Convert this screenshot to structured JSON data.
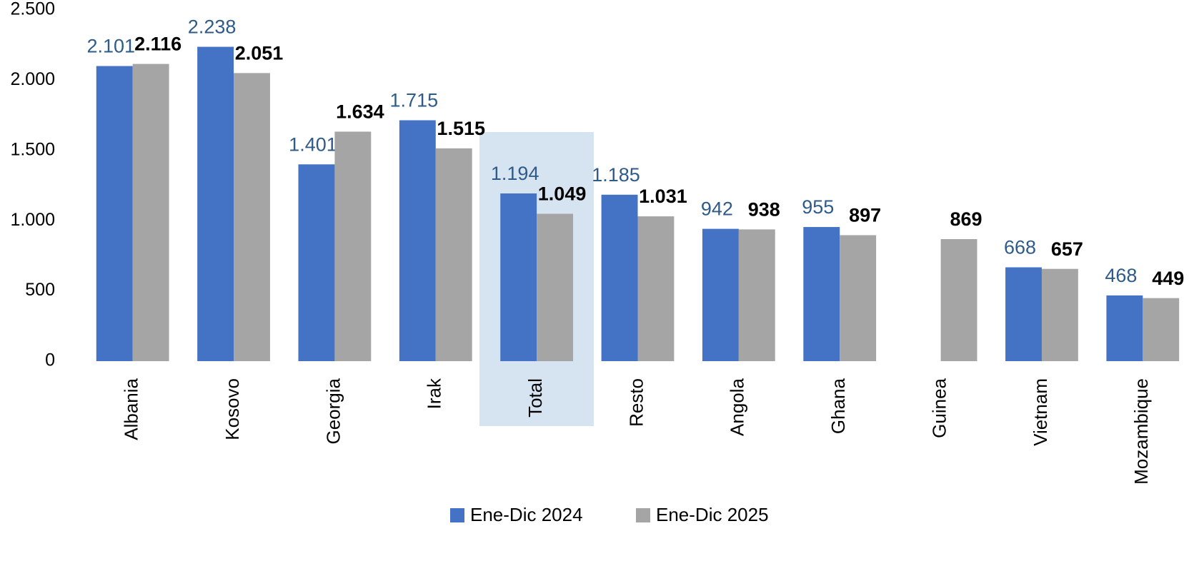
{
  "chart_data": {
    "type": "bar",
    "categories": [
      "Albania",
      "Kosovo",
      "Georgia",
      "Irak",
      "Total",
      "Resto",
      "Angola",
      "Ghana",
      "Guinea",
      "Vietnam",
      "Mozambique"
    ],
    "series": [
      {
        "name": "Ene-Dic 2024",
        "color": "#4472c4",
        "values": [
          2101,
          2238,
          1401,
          1715,
          1194,
          1185,
          942,
          955,
          null,
          668,
          468
        ],
        "value_labels": [
          "2.101",
          "2.238",
          "1.401",
          "1.715",
          "1.194",
          "1.185",
          "942",
          "955",
          null,
          "668",
          "468"
        ]
      },
      {
        "name": "Ene-Dic 2025",
        "color": "#a5a5a5",
        "values": [
          2116,
          2051,
          1634,
          1515,
          1049,
          1031,
          938,
          897,
          869,
          657,
          449
        ],
        "value_labels": [
          "2.116",
          "2.051",
          "1.634",
          "1.515",
          "1.049",
          "1.031",
          "938",
          "897",
          "869",
          "657",
          "449"
        ]
      }
    ],
    "ylim": [
      0,
      2500
    ],
    "yticks": [
      0,
      500,
      {
        "value": 1000,
        "label": "1.000"
      },
      {
        "value": 1500,
        "label": "1.500"
      },
      {
        "value": 2000,
        "label": "2.000"
      },
      {
        "value": 2500,
        "label": "2.500"
      }
    ],
    "grid": false,
    "legend": "bottom"
  }
}
